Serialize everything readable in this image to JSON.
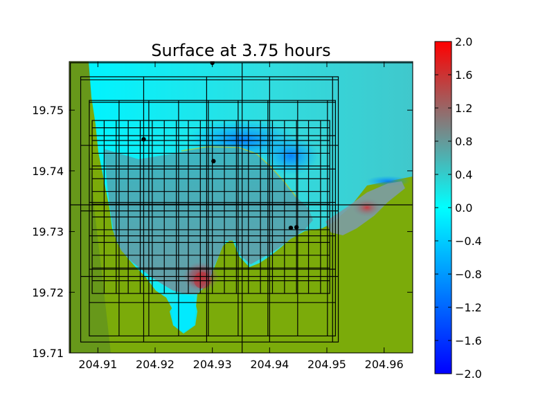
{
  "chart_data": {
    "type": "heatmap",
    "title": "Surface at 3.75 hours",
    "xlabel": "",
    "ylabel": "",
    "xlim": [
      204.905,
      204.965
    ],
    "ylim": [
      19.71,
      19.758
    ],
    "x_ticks": [
      204.91,
      204.92,
      204.93,
      204.94,
      204.95,
      204.96
    ],
    "x_tick_labels": [
      "204.91",
      "204.92",
      "204.93",
      "204.94",
      "204.95",
      "204.96"
    ],
    "y_ticks": [
      19.71,
      19.72,
      19.73,
      19.74,
      19.75
    ],
    "y_tick_labels": [
      "19.71",
      "19.72",
      "19.73",
      "19.74",
      "19.75"
    ],
    "colorbar": {
      "min": -2.0,
      "max": 2.0,
      "ticks": [
        2.0,
        1.6,
        1.2,
        0.8,
        0.4,
        0.0,
        -0.4,
        -0.8,
        -1.2,
        -1.6,
        -2.0
      ],
      "tick_labels": [
        "2.0",
        "1.6",
        "1.2",
        "0.8",
        "0.4",
        "0.0",
        "−0.4",
        "−0.8",
        "−1.2",
        "−1.6",
        "−2.0"
      ],
      "colormap": [
        "#0000ff",
        "#00ffff",
        "#ff0000"
      ]
    },
    "land_color": "#7bab0a",
    "land_shadow_color": "#5a8c25",
    "water_base_color": "#00f0ff",
    "gauges": [
      {
        "x": 204.93,
        "y": 19.7578
      },
      {
        "x": 204.918,
        "y": 19.7452
      },
      {
        "x": 204.9302,
        "y": 19.7416
      },
      {
        "x": 204.9437,
        "y": 19.7306
      },
      {
        "x": 204.9447,
        "y": 19.7307
      }
    ],
    "amr_grid": {
      "level1": {
        "x0": 204.9052,
        "x1": 204.965,
        "y0": 19.71,
        "y1": 19.7578,
        "xstep": 0.03,
        "ystep": 0.0244
      },
      "level2": {
        "x0": 204.907,
        "x1": 204.952,
        "y0": 19.7118,
        "y1": 19.7555,
        "xstep": 0.011,
        "ystep": 0.0108
      },
      "level3": {
        "x0": 204.9085,
        "x1": 204.9515,
        "y0": 19.7128,
        "y1": 19.7516,
        "xstep": 0.0052,
        "ystep": 0.0055
      },
      "level4": {
        "x0": 204.909,
        "x1": 204.9505,
        "y0": 19.7198,
        "y1": 19.7483,
        "xstep": 0.0021,
        "ystep": 0.0021
      }
    }
  }
}
